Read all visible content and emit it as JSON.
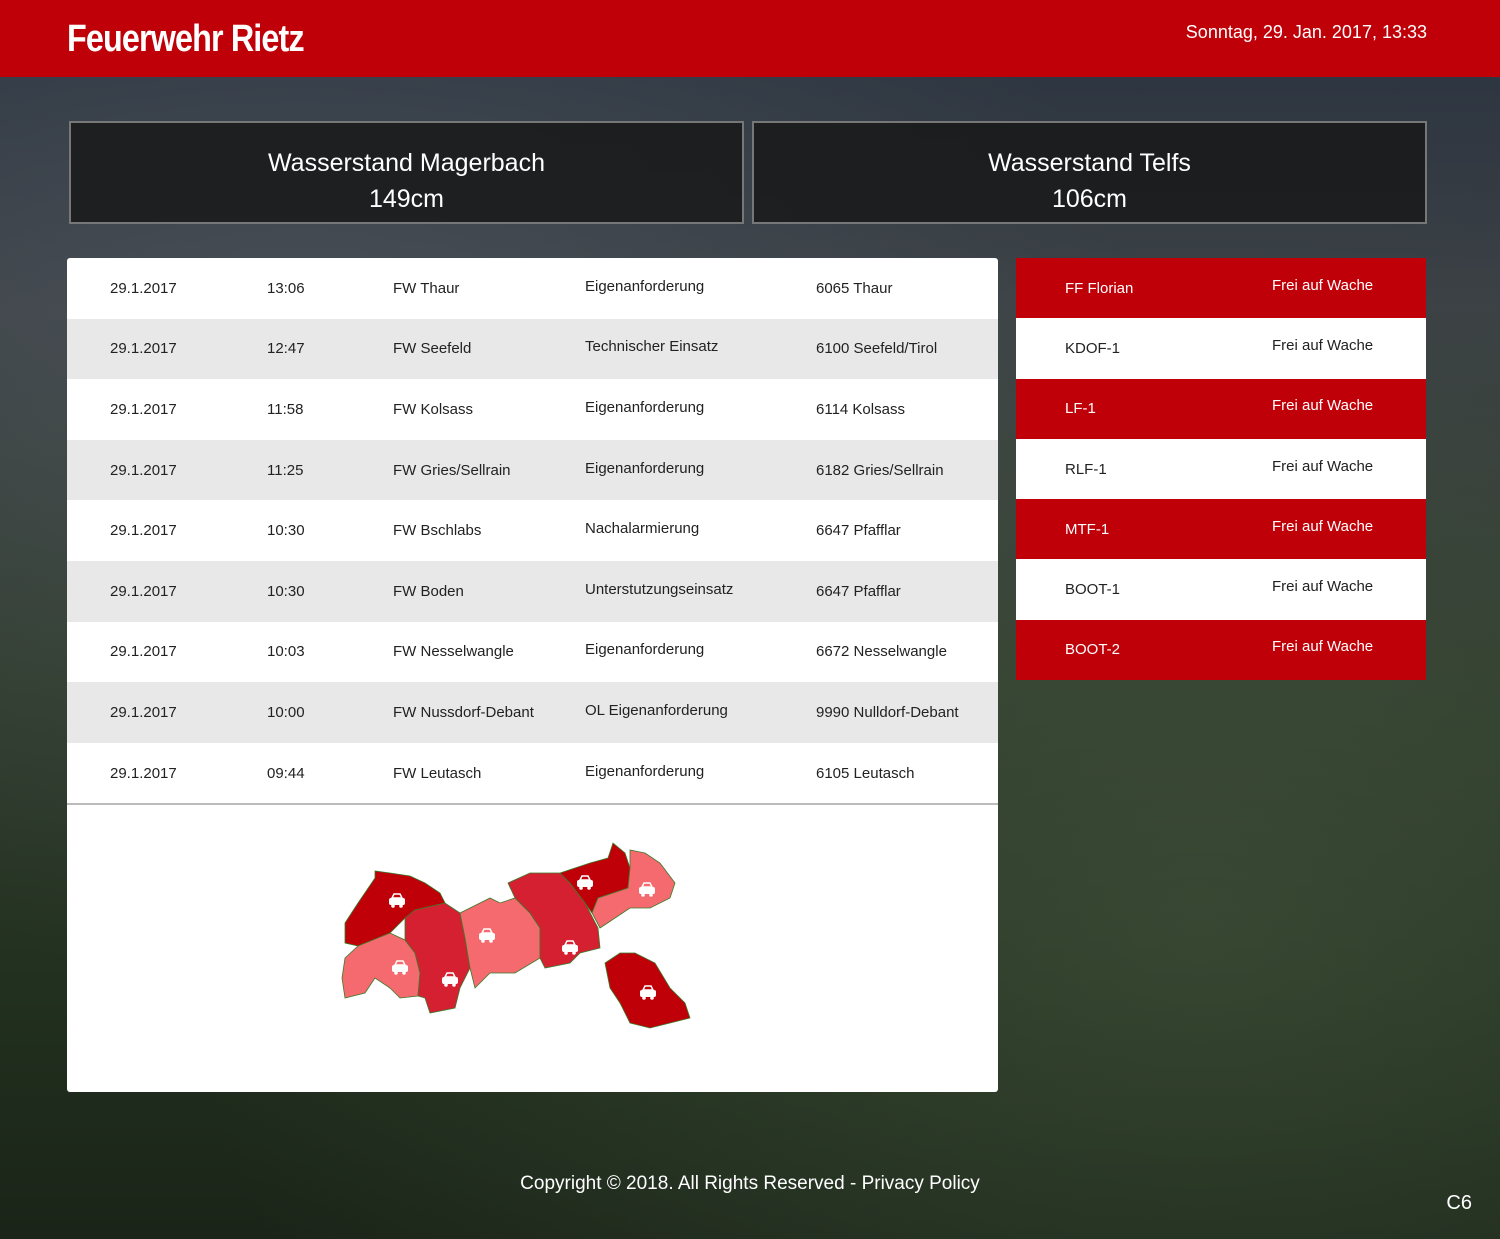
{
  "header": {
    "title": "Feuerwehr Rietz",
    "datetime": "Sonntag, 29. Jan. 2017, 13:33"
  },
  "water": [
    {
      "label": "Wasserstand Magerbach",
      "value": "149cm"
    },
    {
      "label": "Wasserstand Telfs",
      "value": "106cm"
    }
  ],
  "incidents": [
    [
      "29.1.2017",
      "13:06",
      "FW Thaur",
      "Eigenanforderung",
      "6065 Thaur"
    ],
    [
      "29.1.2017",
      "12:47",
      "FW Seefeld",
      "Technischer Einsatz",
      "6100 Seefeld/Tirol"
    ],
    [
      "29.1.2017",
      "11:58",
      "FW Kolsass",
      "Eigenanforderung",
      "6114 Kolsass"
    ],
    [
      "29.1.2017",
      "11:25",
      "FW Gries/Sellrain",
      "Eigenanforderung",
      "6182 Gries/Sellrain"
    ],
    [
      "29.1.2017",
      "10:30",
      "FW Bschlabs",
      "Nachalarmierung",
      "6647 Pfafflar"
    ],
    [
      "29.1.2017",
      "10:30",
      "FW Boden",
      "Unterstutzungseinsatz",
      "6647 Pfafflar"
    ],
    [
      "29.1.2017",
      "10:03",
      "FW Nesselwangle",
      "Eigenanforderung",
      "6672 Nesselwangle"
    ],
    [
      "29.1.2017",
      "10:00",
      "FW Nussdorf-Debant",
      "OL Eigenanforderung",
      "9990 Nulldorf-Debant"
    ],
    [
      "29.1.2017",
      "09:44",
      "FW Leutasch",
      "Eigenanforderung",
      "6105 Leutasch"
    ]
  ],
  "units": [
    {
      "name": "FF Florian",
      "status": "Frei auf Wache"
    },
    {
      "name": "KDOF-1",
      "status": "Frei auf Wache"
    },
    {
      "name": "LF-1",
      "status": "Frei auf Wache"
    },
    {
      "name": "RLF-1",
      "status": "Frei auf Wache"
    },
    {
      "name": "MTF-1",
      "status": "Frei auf Wache"
    },
    {
      "name": "BOOT-1",
      "status": "Frei auf Wache"
    },
    {
      "name": "BOOT-2",
      "status": "Frei auf Wache"
    }
  ],
  "colors": {
    "brand": "#c00008",
    "map_dark": "#c00008",
    "map_mid": "#d42030",
    "map_light": "#f56a6e"
  },
  "footer": {
    "copyright": "Copyright © 2018. All Rights Reserved - ",
    "privacy": "Privacy Policy",
    "code": "C6"
  }
}
